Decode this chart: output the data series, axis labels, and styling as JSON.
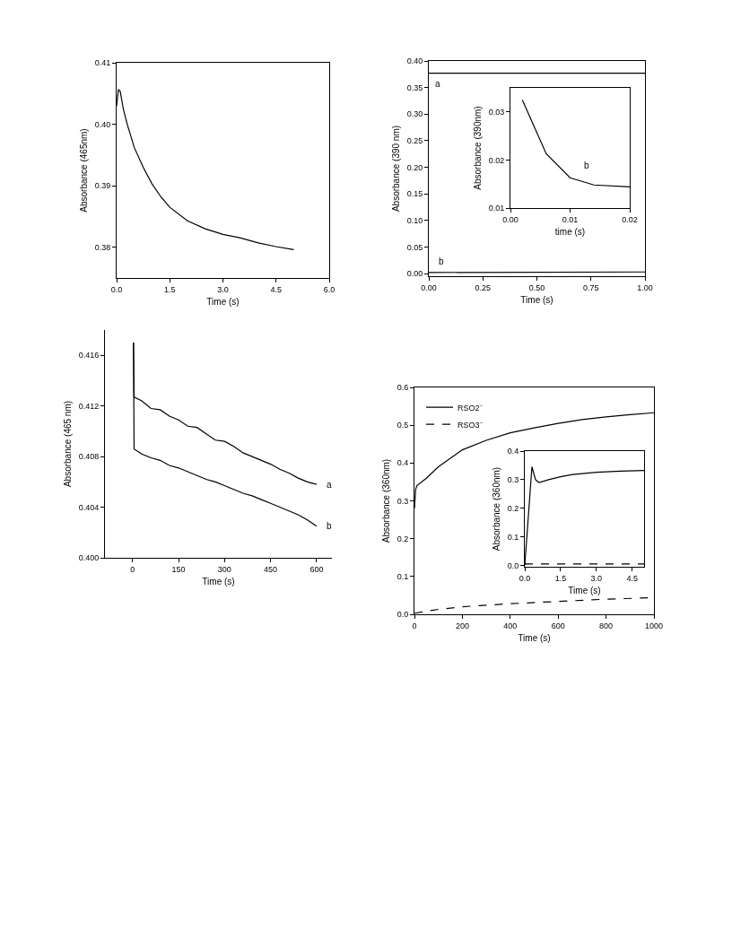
{
  "chart_data": [
    {
      "type": "line",
      "ylabel": "Absorbance (465nm)",
      "xlabel": "Time (s)",
      "xlim": [
        0,
        6
      ],
      "ylim": [
        0.375,
        0.41
      ],
      "xticks": [
        {
          "value": 0,
          "label": "0.0"
        },
        1.5,
        {
          "value": 3,
          "label": "3.0"
        },
        4.5,
        {
          "value": 6,
          "label": "6.0"
        }
      ],
      "yticks": [
        0.38,
        0.39,
        {
          "value": 0.4,
          "label": "0.40"
        },
        0.41
      ],
      "marker": "none",
      "line_style": "solid",
      "series": [
        {
          "color": "#000000",
          "x": [
            0,
            0.05,
            0.1,
            0.2,
            0.3,
            0.5,
            0.75,
            1,
            1.25,
            1.5,
            2,
            2.5,
            3,
            3.5,
            4,
            4.5,
            5
          ],
          "values": [
            0.403,
            0.4056,
            0.4054,
            0.4022,
            0.4,
            0.3962,
            0.393,
            0.3903,
            0.3882,
            0.3865,
            0.3843,
            0.383,
            0.3821,
            0.3815,
            0.3807,
            0.3801,
            0.3796
          ]
        }
      ]
    },
    {
      "type": "line",
      "ylabel": "Absorbance (390 nm)",
      "xlabel": "Time (s)",
      "xlim": [
        0,
        1
      ],
      "ylim": [
        -0.005,
        0.4
      ],
      "xticks": [
        {
          "value": 0,
          "label": "0.00"
        },
        0.25,
        {
          "value": 0.5,
          "label": "0.50"
        },
        0.75,
        {
          "value": 1,
          "label": "1.00"
        }
      ],
      "yticks": [
        {
          "value": 0,
          "label": "0.00"
        },
        0.05,
        {
          "value": 0.1,
          "label": "0.10"
        },
        0.15,
        {
          "value": 0.2,
          "label": "0.20"
        },
        0.25,
        {
          "value": 0.3,
          "label": "0.30"
        },
        0.35,
        {
          "value": 0.4,
          "label": "0.40"
        }
      ],
      "marker": "none",
      "line_style": "solid",
      "series": [
        {
          "name": "a",
          "color": "#000000",
          "x": [
            0,
            1
          ],
          "values": [
            0.377,
            0.377
          ]
        },
        {
          "name": "b",
          "color": "#000000",
          "x": [
            0,
            1
          ],
          "values": [
            0.002,
            0.003
          ]
        }
      ]
    },
    {
      "type": "line",
      "ylabel": "Absorbance (390nm)",
      "xlabel": "time (s)",
      "xlim": [
        0,
        0.02
      ],
      "ylim": [
        0.01,
        0.035
      ],
      "xticks": [
        {
          "value": 0,
          "label": "0.00"
        },
        0.01,
        0.02
      ],
      "yticks": [
        0.01,
        0.02,
        0.03
      ],
      "marker": "none",
      "line_style": "solid",
      "series": [
        {
          "name": "b",
          "color": "#000000",
          "x": [
            0.002,
            0.006,
            0.01,
            0.014,
            0.02
          ],
          "values": [
            0.0325,
            0.0213,
            0.0163,
            0.0148,
            0.0144
          ]
        }
      ]
    },
    {
      "type": "line",
      "ylabel": "Absorbance (465 nm)",
      "xlabel": "Time (s)",
      "xlim": [
        -90,
        650
      ],
      "ylim": [
        0.4,
        0.418
      ],
      "xticks": [
        0,
        150,
        300,
        450,
        600
      ],
      "yticks": [
        {
          "value": 0.4,
          "label": "0.400"
        },
        0.404,
        0.408,
        0.412,
        0.416
      ],
      "marker": "none",
      "line_style": "solid",
      "series": [
        {
          "name": "a",
          "color": "#000000",
          "x": [
            3,
            5,
            30,
            60,
            90,
            120,
            150,
            180,
            210,
            240,
            270,
            300,
            330,
            360,
            390,
            420,
            450,
            480,
            510,
            540,
            570,
            600
          ],
          "values": [
            0.417,
            0.4127,
            0.4124,
            0.4118,
            0.4117,
            0.4112,
            0.4109,
            0.4104,
            0.4103,
            0.4098,
            0.4093,
            0.4092,
            0.4088,
            0.4083,
            0.408,
            0.4077,
            0.4074,
            0.407,
            0.4067,
            0.4063,
            0.406,
            0.4058
          ]
        },
        {
          "name": "b",
          "color": "#000000",
          "x": [
            3,
            5,
            30,
            60,
            90,
            120,
            150,
            180,
            210,
            240,
            270,
            300,
            330,
            360,
            390,
            420,
            450,
            480,
            510,
            540,
            570,
            600
          ],
          "values": [
            0.417,
            0.4086,
            0.4082,
            0.4079,
            0.4077,
            0.4073,
            0.4071,
            0.4068,
            0.4065,
            0.4062,
            0.406,
            0.4057,
            0.4054,
            0.4051,
            0.4049,
            0.4046,
            0.4043,
            0.404,
            0.4037,
            0.4034,
            0.403,
            0.4025
          ]
        }
      ]
    },
    {
      "type": "line",
      "ylabel": "Absorbance (360nm)",
      "xlabel": "Time (s)",
      "xlim": [
        0,
        1000
      ],
      "ylim": [
        0,
        0.6
      ],
      "xticks": [
        0,
        200,
        400,
        600,
        800,
        1000
      ],
      "yticks": [
        {
          "value": 0,
          "label": "0.0"
        },
        0.1,
        0.2,
        0.3,
        0.4,
        0.5,
        0.6
      ],
      "marker": "none",
      "legend": "top left",
      "series": [
        {
          "name": "RSO2⁻",
          "color": "#000000",
          "line_style": "solid",
          "x": [
            0,
            5,
            10,
            50,
            100,
            200,
            300,
            400,
            500,
            600,
            700,
            800,
            900,
            1000
          ],
          "values": [
            0.28,
            0.33,
            0.34,
            0.36,
            0.39,
            0.435,
            0.46,
            0.48,
            0.493,
            0.505,
            0.515,
            0.522,
            0.528,
            0.533
          ]
        },
        {
          "name": "RSO3⁻",
          "color": "#000000",
          "line_style": "dashed",
          "x": [
            0,
            100,
            200,
            400,
            600,
            800,
            1000
          ],
          "values": [
            0.003,
            0.013,
            0.02,
            0.028,
            0.034,
            0.04,
            0.044
          ]
        }
      ]
    },
    {
      "type": "line",
      "ylabel": "Absorbance (360nm)",
      "xlabel": "Time (s)",
      "xlim": [
        0,
        5
      ],
      "ylim": [
        -0.005,
        0.4
      ],
      "xticks": [
        {
          "value": 0,
          "label": "0.0"
        },
        1.5,
        {
          "value": 3,
          "label": "3.0"
        },
        4.5
      ],
      "yticks": [
        {
          "value": 0,
          "label": "0.0"
        },
        0.1,
        0.2,
        0.3,
        0.4
      ],
      "marker": "none",
      "series": [
        {
          "color": "#000000",
          "line_style": "solid",
          "x": [
            0,
            0.3,
            0.45,
            0.6,
            1,
            1.5,
            2,
            3,
            4,
            5
          ],
          "values": [
            0,
            0.345,
            0.3,
            0.29,
            0.3,
            0.31,
            0.318,
            0.326,
            0.33,
            0.332
          ]
        },
        {
          "color": "#000000",
          "line_style": "dashed",
          "x": [
            0,
            5
          ],
          "values": [
            0.005,
            0.005
          ]
        }
      ]
    }
  ]
}
